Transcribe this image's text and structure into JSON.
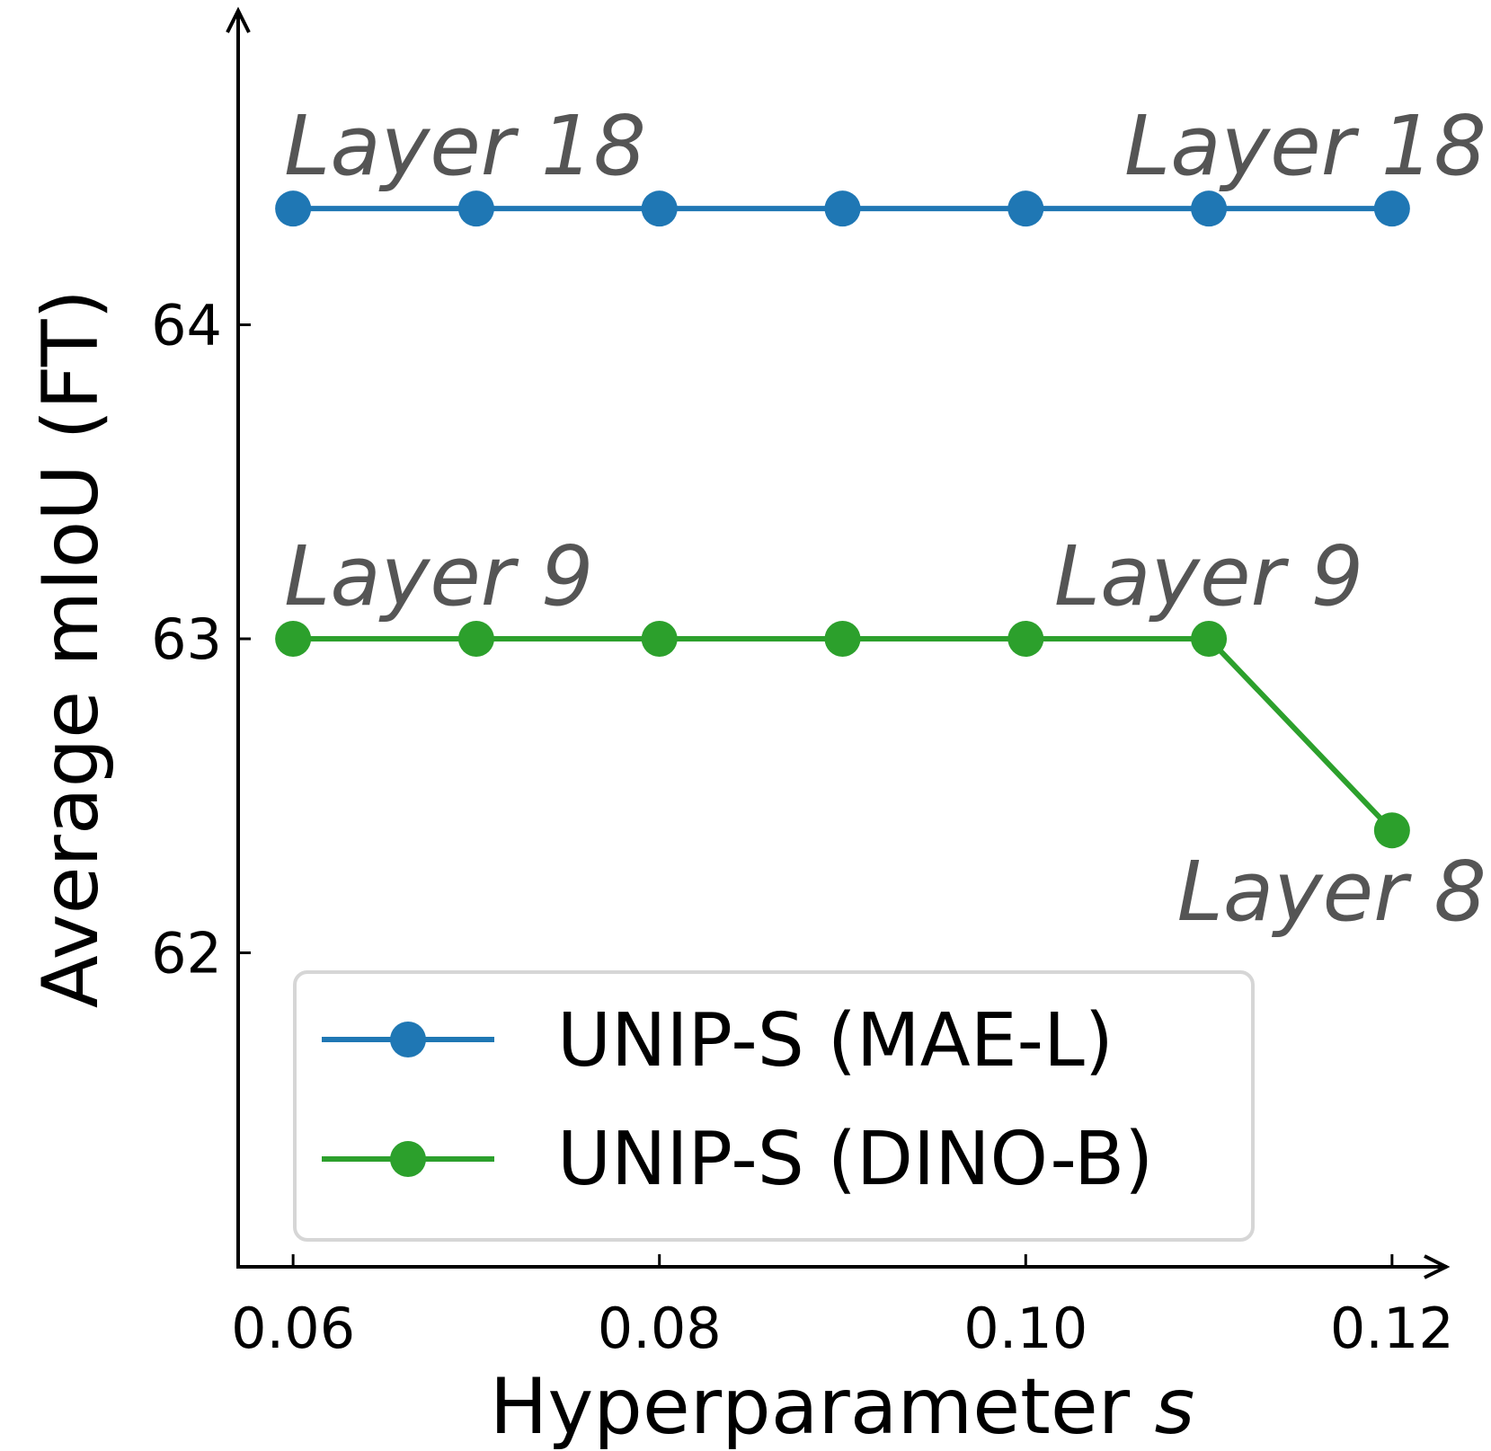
{
  "chart_data": {
    "type": "line",
    "xlabel_main": "Hyperparameter ",
    "xlabel_var": "s",
    "ylabel": "Average mIoU (FT)",
    "x": [
      0.06,
      0.07,
      0.08,
      0.09,
      0.1,
      0.11,
      0.12
    ],
    "x_ticks": [
      0.06,
      0.08,
      0.1,
      0.12
    ],
    "x_tick_labels": [
      "0.06",
      "0.08",
      "0.10",
      "0.12"
    ],
    "y_ticks": [
      62,
      63,
      64
    ],
    "y_tick_labels": [
      "62",
      "63",
      "64"
    ],
    "xlim": [
      0.057,
      0.123
    ],
    "ylim": [
      61.0,
      65.0
    ],
    "grid": false,
    "legend_position": "lower-left",
    "series": [
      {
        "name": "UNIP-S (MAE-L)",
        "color": "#1f77b4",
        "values": [
          64.37,
          64.37,
          64.37,
          64.37,
          64.37,
          64.37,
          64.37
        ]
      },
      {
        "name": "UNIP-S (DINO-B)",
        "color": "#2ca02c",
        "values": [
          63.0,
          63.0,
          63.0,
          63.0,
          63.0,
          63.0,
          62.39
        ]
      }
    ],
    "annotations": [
      {
        "text": "Layer 18",
        "x": 0.06,
        "y": 64.37,
        "anchor": "start",
        "position": "above"
      },
      {
        "text": "Layer 18",
        "x": 0.12,
        "y": 64.37,
        "anchor": "end",
        "position": "above"
      },
      {
        "text": "Layer 9",
        "x": 0.06,
        "y": 63.0,
        "anchor": "start",
        "position": "above"
      },
      {
        "text": "Layer 9",
        "x": 0.11,
        "y": 63.0,
        "anchor": "middle",
        "position": "above"
      },
      {
        "text": "Layer 8",
        "x": 0.12,
        "y": 62.39,
        "anchor": "end",
        "position": "below"
      }
    ]
  }
}
